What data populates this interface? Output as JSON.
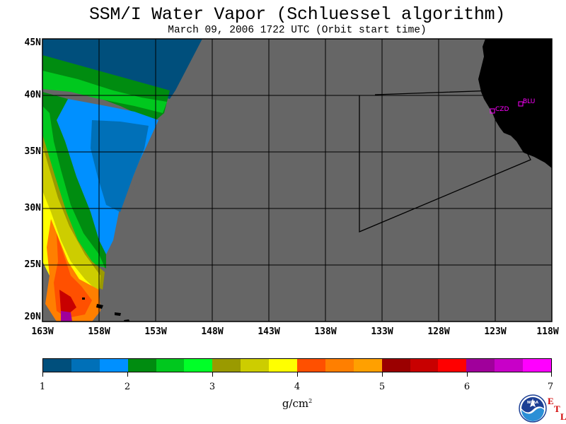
{
  "title": "SSM/I Water Vapor (Schluessel algorithm)",
  "subtitle": "March 09, 2006  1722 UTC  (Orbit start time)",
  "map": {
    "lat_range": [
      20,
      45
    ],
    "lon_range": [
      -163,
      -118
    ],
    "grid": true,
    "background_color": "#666666",
    "land_color": "#000000",
    "lat_labels": [
      "45N",
      "40N",
      "35N",
      "30N",
      "25N",
      "20N"
    ],
    "lon_labels": [
      "163W",
      "158W",
      "153W",
      "148W",
      "143W",
      "138W",
      "133W",
      "128W",
      "123W",
      "118W"
    ],
    "stations": [
      {
        "name": "CZD",
        "lat": 38.6,
        "lon": -123.2,
        "color": "#ff00ff"
      },
      {
        "name": "BLU",
        "lat": 39.2,
        "lon": -120.7,
        "color": "#ff00ff"
      }
    ],
    "target_box": [
      {
        "lat": 40.0,
        "lon": -135.0
      },
      {
        "lat": 40.5,
        "lon": -124.5
      },
      {
        "lat": 34.5,
        "lon": -120.5
      },
      {
        "lat": 27.8,
        "lon": -135.0
      }
    ]
  },
  "colorbar": {
    "ticks": [
      "1",
      "2",
      "3",
      "4",
      "5",
      "6",
      "7"
    ],
    "colors": [
      "#004f7c",
      "#0070b8",
      "#0090ff",
      "#008c10",
      "#00c81e",
      "#00ff28",
      "#9a9a00",
      "#cdcd00",
      "#ffff00",
      "#ff5000",
      "#ff7f00",
      "#ffa000",
      "#9b0000",
      "#c80000",
      "#ff0000",
      "#a0009b",
      "#c800c8",
      "#ff00ff"
    ],
    "unit": "g/cm",
    "unit_exponent": "2"
  },
  "logos": {
    "noaa_text": "NOAA",
    "etl_letters": [
      "E",
      "T",
      "L"
    ]
  }
}
